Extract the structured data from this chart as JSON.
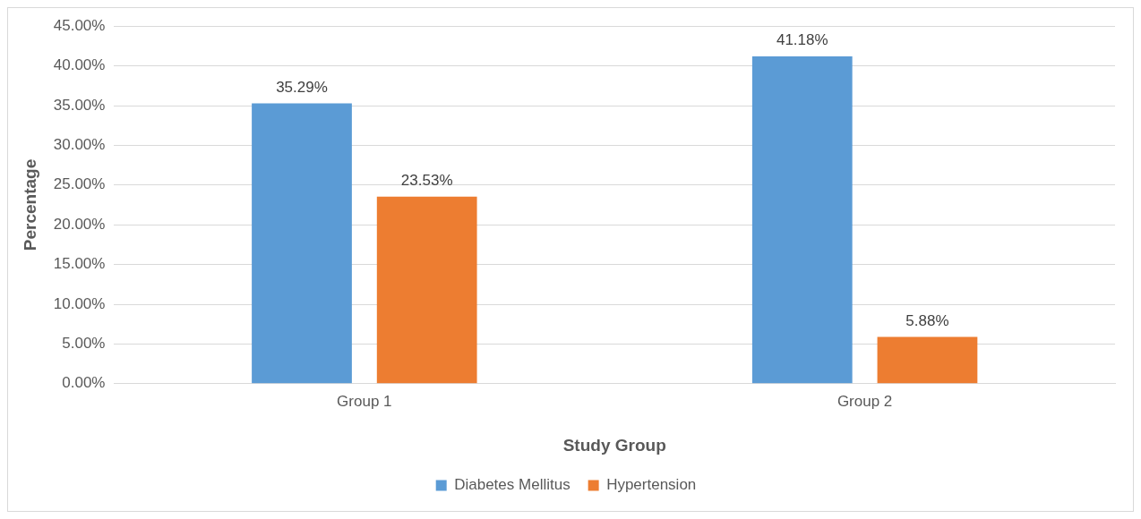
{
  "chart_data": {
    "type": "bar",
    "xlabel": "Study Group",
    "ylabel": "Percentage",
    "categories": [
      "Group 1",
      "Group 2"
    ],
    "series": [
      {
        "name": "Diabetes Mellitus",
        "color": "#5b9bd5",
        "values": [
          35.29,
          41.18
        ],
        "value_labels": [
          "35.29%",
          "41.18%"
        ]
      },
      {
        "name": "Hypertension",
        "color": "#ed7d31",
        "values": [
          23.53,
          5.88
        ],
        "value_labels": [
          "23.53%",
          "5.88%"
        ]
      }
    ],
    "ylim": [
      0,
      45
    ],
    "yticks": [
      {
        "value": 0,
        "label": "0.00%"
      },
      {
        "value": 5,
        "label": "5.00%"
      },
      {
        "value": 10,
        "label": "10.00%"
      },
      {
        "value": 15,
        "label": "15.00%"
      },
      {
        "value": 20,
        "label": "20.00%"
      },
      {
        "value": 25,
        "label": "25.00%"
      },
      {
        "value": 30,
        "label": "30.00%"
      },
      {
        "value": 35,
        "label": "35.00%"
      },
      {
        "value": 40,
        "label": "40.00%"
      },
      {
        "value": 45,
        "label": "45.00%"
      }
    ],
    "grid": "y",
    "legend": "bottom"
  }
}
